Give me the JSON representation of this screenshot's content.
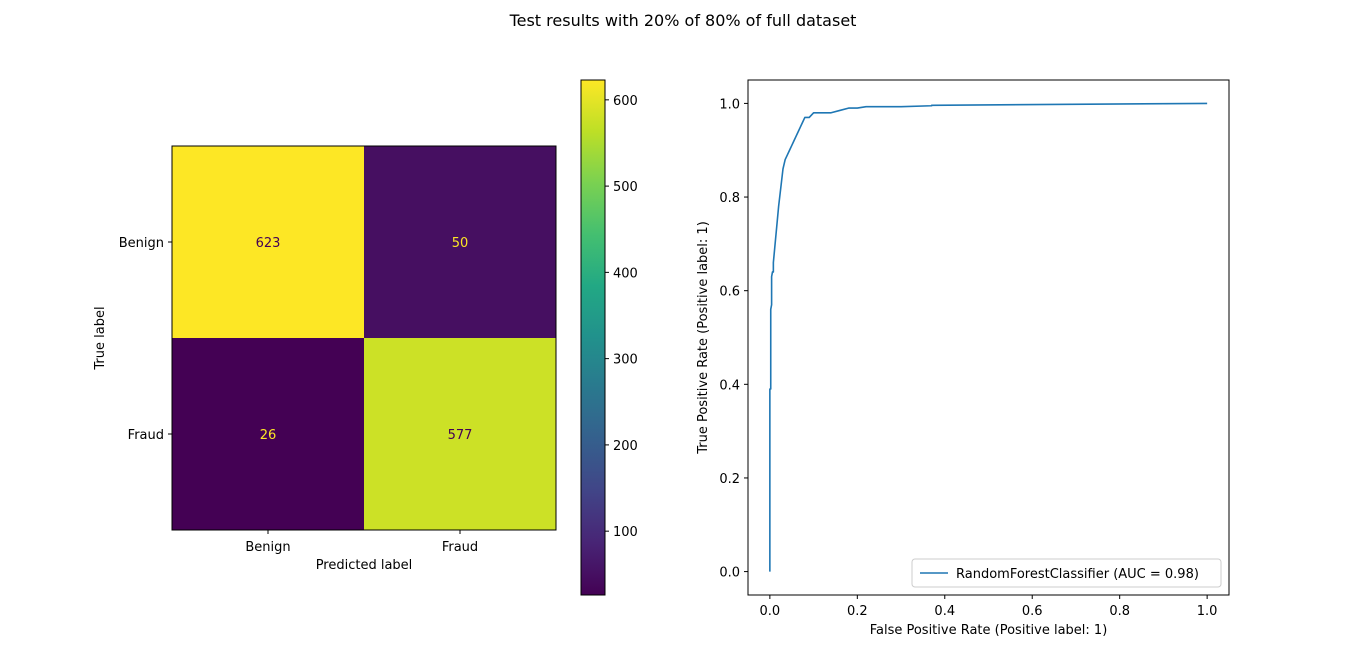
{
  "figure": {
    "title": "Test results with 20% of 80% of full dataset"
  },
  "chart_data": [
    {
      "type": "heatmap",
      "title": "",
      "xlabel": "Predicted label",
      "ylabel": "True label",
      "x_categories": [
        "Benign",
        "Fraud"
      ],
      "y_categories": [
        "Benign",
        "Fraud"
      ],
      "values": [
        [
          623,
          50
        ],
        [
          26,
          577
        ]
      ],
      "colormap": "viridis",
      "colorbar": {
        "range": [
          26,
          623
        ],
        "ticks": [
          100,
          200,
          300,
          400,
          500,
          600
        ]
      },
      "text_colors": {
        "on_bright": "#440154",
        "on_dark": "#fde725"
      }
    },
    {
      "type": "line",
      "title": "",
      "xlabel": "False Positive Rate (Positive label: 1)",
      "ylabel": "True Positive Rate (Positive label: 1)",
      "xlim": [
        -0.05,
        1.05
      ],
      "ylim": [
        -0.05,
        1.05
      ],
      "xticks": [
        0.0,
        0.2,
        0.4,
        0.6,
        0.8,
        1.0
      ],
      "yticks": [
        0.0,
        0.2,
        0.4,
        0.6,
        0.8,
        1.0
      ],
      "grid": false,
      "legend_position": "lower-right",
      "series": [
        {
          "name": "RandomForestClassifier (AUC = 0.98)",
          "color": "#1f77b4",
          "x": [
            0,
            0,
            0.002,
            0.002,
            0.004,
            0.004,
            0.006,
            0.006,
            0.008,
            0.008,
            0.012,
            0.016,
            0.02,
            0.025,
            0.03,
            0.035,
            0.04,
            0.045,
            0.05,
            0.055,
            0.06,
            0.065,
            0.07,
            0.075,
            0.08,
            0.09,
            0.1,
            0.11,
            0.14,
            0.16,
            0.18,
            0.2,
            0.22,
            0.3,
            0.37,
            0.37,
            1.0
          ],
          "y": [
            0,
            0.39,
            0.39,
            0.56,
            0.57,
            0.63,
            0.64,
            0.64,
            0.64,
            0.66,
            0.7,
            0.74,
            0.78,
            0.82,
            0.86,
            0.88,
            0.89,
            0.9,
            0.91,
            0.92,
            0.93,
            0.94,
            0.95,
            0.96,
            0.97,
            0.97,
            0.98,
            0.98,
            0.98,
            0.985,
            0.99,
            0.99,
            0.993,
            0.993,
            0.995,
            0.996,
            1.0
          ]
        }
      ]
    }
  ]
}
